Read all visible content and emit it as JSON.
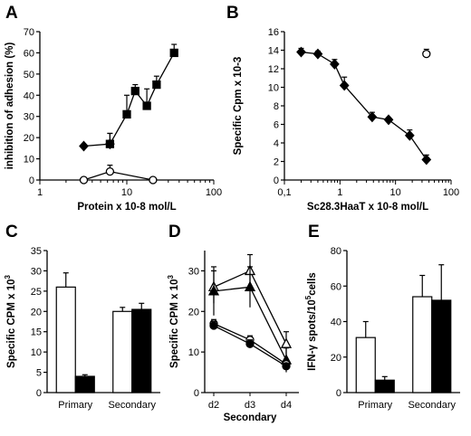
{
  "panels": [
    {
      "letter": "A"
    },
    {
      "letter": "B"
    },
    {
      "letter": "C"
    },
    {
      "letter": "D"
    },
    {
      "letter": "E"
    }
  ],
  "chart_data": [
    {
      "panel": "A",
      "type": "line",
      "xlabel": "Protein x 10-8 mol/L",
      "ylabel": "inhibition of adhesion (%)",
      "xscale": "log",
      "xlim": [
        1,
        100
      ],
      "ylim": [
        0,
        70
      ],
      "xticks": [
        "1",
        "10",
        "100"
      ],
      "yticks": [
        "0",
        "10",
        "20",
        "30",
        "40",
        "50",
        "60",
        "70"
      ],
      "series": [
        {
          "marker": "filled-diamond",
          "x": [
            3.2,
            6.4
          ],
          "y": [
            16,
            17
          ],
          "err": [
            0,
            5
          ]
        },
        {
          "marker": "filled-square",
          "x": [
            6.4,
            10,
            12.5,
            17,
            22,
            35
          ],
          "y": [
            17,
            31,
            42,
            35,
            45,
            60
          ],
          "err": [
            5,
            9,
            3,
            8,
            4,
            4
          ]
        },
        {
          "marker": "open-circle",
          "x": [
            3.2,
            6.4,
            20
          ],
          "y": [
            0,
            4,
            0
          ],
          "err": [
            0,
            3,
            0
          ]
        }
      ]
    },
    {
      "panel": "B",
      "type": "line",
      "xlabel": "Sc28.3HaaT x 10-8 mol/L",
      "ylabel": "Specific Cpm x 10-3",
      "xscale": "log",
      "xlim": [
        0.1,
        100
      ],
      "ylim": [
        0,
        16
      ],
      "xticks": [
        "0,1",
        "1",
        "10",
        "100"
      ],
      "yticks": [
        "0",
        "2",
        "4",
        "6",
        "8",
        "10",
        "12",
        "14",
        "16"
      ],
      "series": [
        {
          "marker": "filled-diamond",
          "x": [
            0.2,
            0.4,
            0.8,
            1.2,
            3.8,
            7.5,
            18,
            36
          ],
          "y": [
            13.8,
            13.6,
            12.5,
            10.2,
            6.8,
            6.5,
            4.8,
            2.2
          ],
          "err": [
            0.4,
            0.3,
            0.5,
            0.9,
            0.5,
            0.2,
            0.6,
            0.5
          ]
        },
        {
          "marker": "open-circle",
          "x": [
            36
          ],
          "y": [
            13.6
          ],
          "err": [
            0.5
          ]
        }
      ]
    },
    {
      "panel": "C",
      "type": "bar",
      "ylabel": "Specific CPM x 10",
      "ylabel_sup": "3",
      "categories": [
        "Primary",
        "Secondary"
      ],
      "ylim": [
        0,
        35
      ],
      "yticks": [
        "0",
        "5",
        "10",
        "15",
        "20",
        "25",
        "30",
        "35"
      ],
      "series": [
        {
          "fill": "white",
          "values": [
            26,
            20
          ],
          "err": [
            3.5,
            1
          ]
        },
        {
          "fill": "black",
          "values": [
            4,
            20.5
          ],
          "err": [
            0.4,
            1.5
          ]
        }
      ]
    },
    {
      "panel": "D",
      "type": "line",
      "xlabel": "Secondary",
      "ylabel": "Specific CPM x 10",
      "ylabel_sup": "3",
      "categories": [
        "d2",
        "d3",
        "d4"
      ],
      "ylim": [
        0,
        35
      ],
      "yticks": [
        "0",
        "10",
        "20",
        "30"
      ],
      "series": [
        {
          "marker": "open-triangle",
          "values": [
            26,
            30,
            12
          ],
          "err": [
            4,
            4,
            3
          ]
        },
        {
          "marker": "filled-triangle",
          "values": [
            25,
            26,
            8
          ],
          "err": [
            6,
            5,
            3
          ]
        },
        {
          "marker": "open-circle",
          "values": [
            17,
            13,
            7
          ],
          "err": [
            1,
            1,
            0.5
          ]
        },
        {
          "marker": "filled-circle",
          "values": [
            16.5,
            12,
            6.5
          ],
          "err": [
            1,
            1,
            0.5
          ]
        }
      ]
    },
    {
      "panel": "E",
      "type": "bar",
      "ylabel": "IFN-γ spots/10",
      "ylabel_sup": "5",
      "ylabel_tail": "cells",
      "categories": [
        "Primary",
        "Secondary"
      ],
      "ylim": [
        0,
        80
      ],
      "yticks": [
        "0",
        "20",
        "40",
        "60",
        "80"
      ],
      "series": [
        {
          "fill": "white",
          "values": [
            31,
            54
          ],
          "err": [
            9,
            12
          ]
        },
        {
          "fill": "black",
          "values": [
            7,
            52
          ],
          "err": [
            2,
            20
          ]
        }
      ]
    }
  ]
}
